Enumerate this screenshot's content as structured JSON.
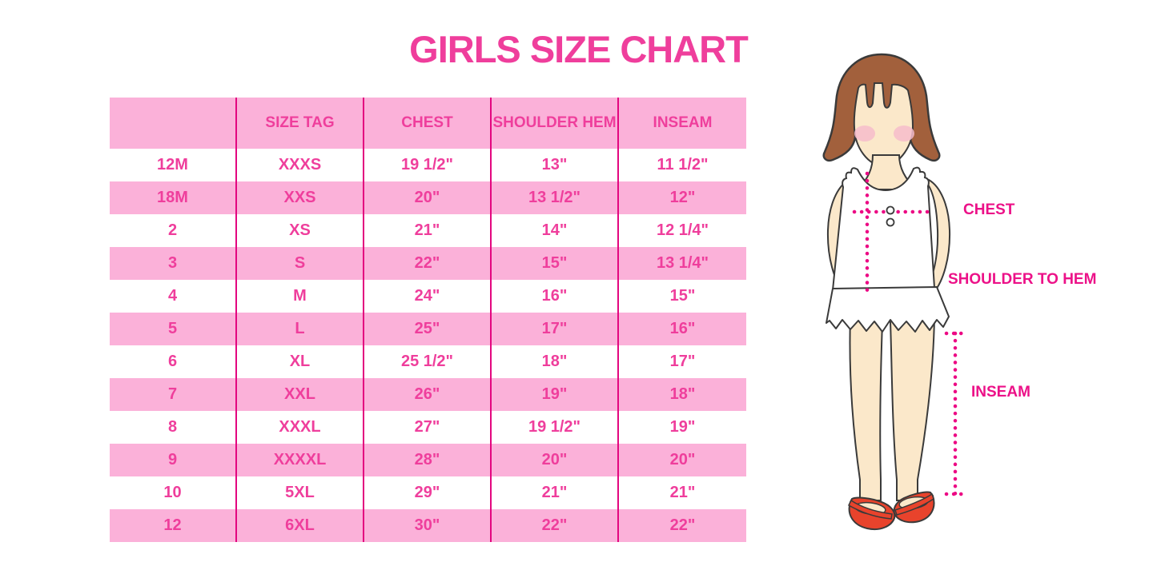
{
  "title": "GIRLS SIZE CHART",
  "colors": {
    "accent_pink_text": "#ef3e9c",
    "row_pink": "#fbb1d9",
    "divider_magenta": "#e3067f",
    "label_magenta": "#ec1188",
    "dotted_line_magenta": "#ec0984",
    "hair_brown": "#a2603c",
    "skin": "#fbe8ca",
    "blush": "#f6bccb",
    "shoe_red": "#e8432c"
  },
  "size_table": {
    "columns": [
      "",
      "SIZE TAG",
      "CHEST",
      "SHOULDER HEM",
      "INSEAM"
    ],
    "rows": [
      [
        "12M",
        "XXXS",
        "19 1/2\"",
        "13\"",
        "11 1/2\""
      ],
      [
        "18M",
        "XXS",
        "20\"",
        "13 1/2\"",
        "12\""
      ],
      [
        "2",
        "XS",
        "21\"",
        "14\"",
        "12 1/4\""
      ],
      [
        "3",
        "S",
        "22\"",
        "15\"",
        "13 1/4\""
      ],
      [
        "4",
        "M",
        "24\"",
        "16\"",
        "15\""
      ],
      [
        "5",
        "L",
        "25\"",
        "17\"",
        "16\""
      ],
      [
        "6",
        "XL",
        "25 1/2\"",
        "18\"",
        "17\""
      ],
      [
        "7",
        "XXL",
        "26\"",
        "19\"",
        "18\""
      ],
      [
        "8",
        "XXXL",
        "27\"",
        "19 1/2\"",
        "19\""
      ],
      [
        "9",
        "XXXXL",
        "28\"",
        "20\"",
        "20\""
      ],
      [
        "10",
        "5XL",
        "29\"",
        "21\"",
        "21\""
      ],
      [
        "12",
        "6XL",
        "30\"",
        "22\"",
        "22\""
      ]
    ]
  },
  "figure": {
    "labels": {
      "chest": "CHEST",
      "shoulder_to_hem": "SHOULDER TO HEM",
      "inseam": "INSEAM"
    }
  },
  "chart_data": {
    "type": "table",
    "title": "GIRLS SIZE CHART",
    "columns": [
      "",
      "SIZE TAG",
      "CHEST",
      "SHOULDER HEM",
      "INSEAM"
    ],
    "rows": [
      [
        "12M",
        "XXXS",
        "19 1/2\"",
        "13\"",
        "11 1/2\""
      ],
      [
        "18M",
        "XXS",
        "20\"",
        "13 1/2\"",
        "12\""
      ],
      [
        "2",
        "XS",
        "21\"",
        "14\"",
        "12 1/4\""
      ],
      [
        "3",
        "S",
        "22\"",
        "15\"",
        "13 1/4\""
      ],
      [
        "4",
        "M",
        "24\"",
        "16\"",
        "15\""
      ],
      [
        "5",
        "L",
        "25\"",
        "17\"",
        "16\""
      ],
      [
        "6",
        "XL",
        "25 1/2\"",
        "18\"",
        "17\""
      ],
      [
        "7",
        "XXL",
        "26\"",
        "19\"",
        "18\""
      ],
      [
        "8",
        "XXXL",
        "27\"",
        "19 1/2\"",
        "19\""
      ],
      [
        "9",
        "XXXXL",
        "28\"",
        "20\"",
        "20\""
      ],
      [
        "10",
        "5XL",
        "29\"",
        "21\"",
        "21\""
      ],
      [
        "12",
        "6XL",
        "30\"",
        "22\"",
        "22\""
      ]
    ]
  }
}
